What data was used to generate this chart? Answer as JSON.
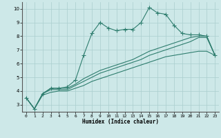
{
  "xlabel": "Humidex (Indice chaleur)",
  "bg_color": "#cde8e8",
  "grid_color": "#aacece",
  "line_color": "#2e7d6e",
  "xlim": [
    -0.5,
    23.5
  ],
  "ylim": [
    2.5,
    10.5
  ],
  "xticks": [
    0,
    1,
    2,
    3,
    4,
    5,
    6,
    7,
    8,
    9,
    10,
    11,
    12,
    13,
    14,
    15,
    16,
    17,
    18,
    19,
    20,
    21,
    22,
    23
  ],
  "yticks": [
    3,
    4,
    5,
    6,
    7,
    8,
    9,
    10
  ],
  "series1_x": [
    0,
    1,
    2,
    3,
    4,
    5,
    6,
    7,
    8,
    9,
    10,
    11,
    12,
    13,
    14,
    15,
    16,
    17,
    18,
    19,
    20,
    21,
    22,
    23
  ],
  "series1_y": [
    3.5,
    2.7,
    3.8,
    4.2,
    4.2,
    4.3,
    4.8,
    6.6,
    8.2,
    9.0,
    8.6,
    8.4,
    8.5,
    8.5,
    9.0,
    10.1,
    9.7,
    9.6,
    8.8,
    8.2,
    8.1,
    8.1,
    8.0,
    6.6
  ],
  "series2_x": [
    0,
    1,
    2,
    3,
    4,
    5,
    6,
    7,
    8,
    9,
    10,
    11,
    12,
    13,
    14,
    15,
    16,
    17,
    18,
    19,
    20,
    21,
    22,
    23
  ],
  "series2_y": [
    3.5,
    2.7,
    3.8,
    4.2,
    4.2,
    4.2,
    4.5,
    4.9,
    5.2,
    5.5,
    5.7,
    5.9,
    6.1,
    6.3,
    6.6,
    6.9,
    7.1,
    7.3,
    7.5,
    7.7,
    7.9,
    8.0,
    8.0,
    6.6
  ],
  "series3_x": [
    0,
    1,
    2,
    3,
    4,
    5,
    6,
    7,
    8,
    9,
    10,
    11,
    12,
    13,
    14,
    15,
    16,
    17,
    18,
    19,
    20,
    21,
    22,
    23
  ],
  "series3_y": [
    3.5,
    2.7,
    3.8,
    4.1,
    4.1,
    4.1,
    4.4,
    4.7,
    5.0,
    5.3,
    5.5,
    5.7,
    5.9,
    6.1,
    6.3,
    6.6,
    6.8,
    7.0,
    7.2,
    7.4,
    7.6,
    7.9,
    7.9,
    6.6
  ],
  "series4_x": [
    0,
    1,
    2,
    3,
    4,
    5,
    6,
    7,
    8,
    9,
    10,
    11,
    12,
    13,
    14,
    15,
    16,
    17,
    18,
    19,
    20,
    21,
    22,
    23
  ],
  "series4_y": [
    3.5,
    2.7,
    3.7,
    3.9,
    4.0,
    4.0,
    4.2,
    4.4,
    4.7,
    4.9,
    5.1,
    5.3,
    5.5,
    5.7,
    5.9,
    6.1,
    6.3,
    6.5,
    6.6,
    6.7,
    6.8,
    6.9,
    6.9,
    6.6
  ],
  "marker": "+",
  "markersize": 4,
  "linewidth": 0.8
}
